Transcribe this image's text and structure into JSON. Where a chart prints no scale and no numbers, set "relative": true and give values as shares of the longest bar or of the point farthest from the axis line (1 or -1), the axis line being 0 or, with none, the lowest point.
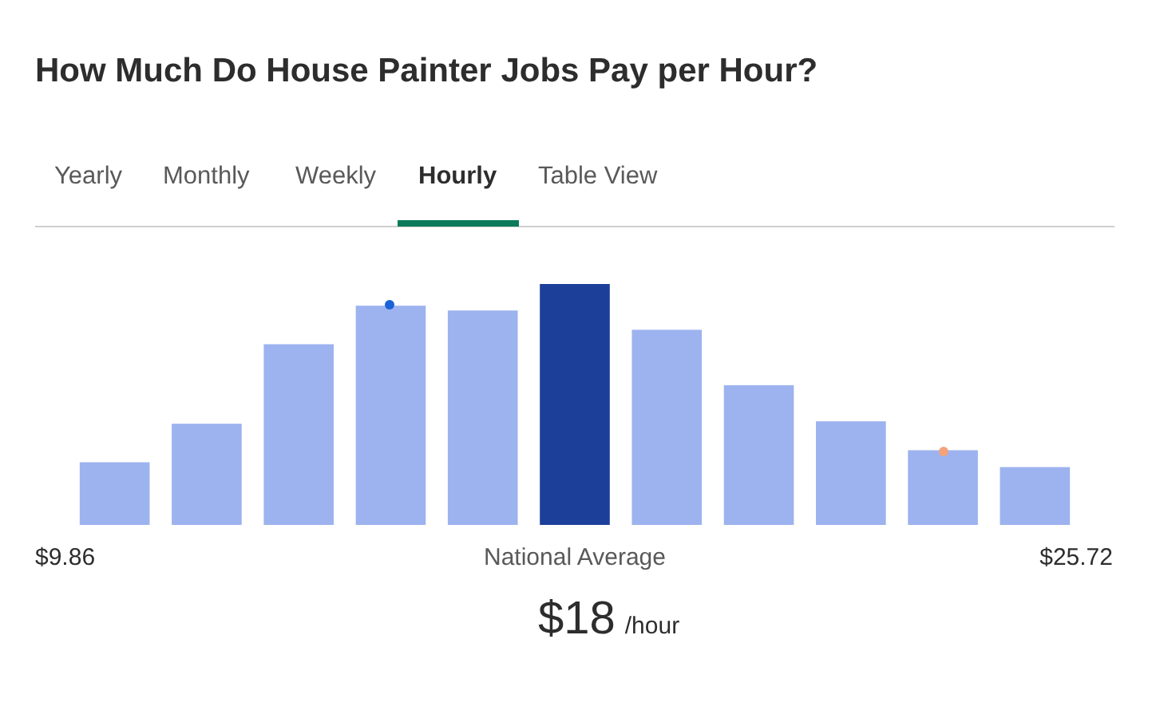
{
  "chart_data": {
    "type": "bar",
    "title": "How Much Do House Painter Jobs Pay per Hour?",
    "relative": true,
    "categories": [
      null,
      null,
      null,
      null,
      null,
      null,
      null,
      null,
      null,
      null,
      null
    ],
    "values": [
      0.26,
      0.42,
      0.75,
      0.91,
      0.89,
      1,
      0.81,
      0.58,
      0.43,
      0.31,
      0.24
    ],
    "colors": [
      "#9db3ef",
      "#9db3ef",
      "#9db3ef",
      "#9db3ef",
      "#9db3ef",
      "#1c3f9a",
      "#9db3ef",
      "#9db3ef",
      "#9db3ef",
      "#9db3ef",
      "#9db3ef"
    ],
    "annotations": [
      "Yearly",
      "Monthly",
      "Weekly",
      "Hourly",
      "Table View",
      "$9.86",
      "National Average",
      "$25.72",
      "$18",
      "/hour"
    ]
  }
}
